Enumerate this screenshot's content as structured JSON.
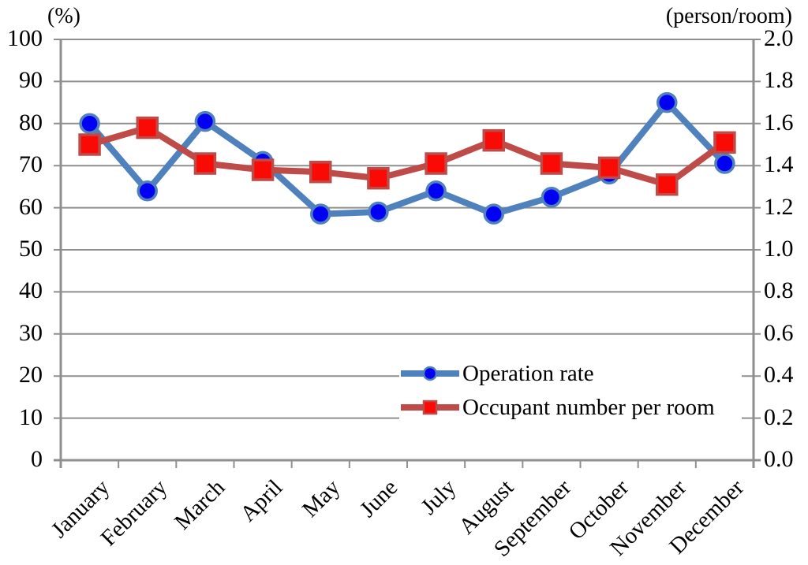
{
  "chart_data": {
    "type": "line",
    "categories": [
      "January",
      "February",
      "March",
      "April",
      "May",
      "June",
      "July",
      "August",
      "September",
      "October",
      "November",
      "December"
    ],
    "series": [
      {
        "name": "Operation rate",
        "axis": "left",
        "marker": "circle",
        "line_color": "#4F81BD",
        "marker_fill": "#0000F2",
        "marker_stroke": "#4F81BD",
        "values": [
          80,
          64,
          80.5,
          71,
          58.5,
          59,
          64,
          58.5,
          62.5,
          68,
          85,
          70.5
        ]
      },
      {
        "name": "Occupant number per room",
        "axis": "right",
        "marker": "square",
        "line_color": "#BE4B48",
        "marker_fill": "#FA0A05",
        "marker_stroke": "#BE4B48",
        "values": [
          1.5,
          1.58,
          1.41,
          1.38,
          1.37,
          1.34,
          1.41,
          1.52,
          1.41,
          1.39,
          1.31,
          1.51
        ]
      }
    ],
    "left_axis": {
      "title": "(%)",
      "min": 0,
      "max": 100,
      "step": 10,
      "tick_labels": [
        "0",
        "10",
        "20",
        "30",
        "40",
        "50",
        "60",
        "70",
        "80",
        "90",
        "100"
      ]
    },
    "right_axis": {
      "title": "(person/room)",
      "min": 0,
      "max": 2.0,
      "step": 0.2,
      "tick_labels": [
        "0.0",
        "0.2",
        "0.4",
        "0.6",
        "0.8",
        "1.0",
        "1.2",
        "1.4",
        "1.6",
        "1.8",
        "2.0"
      ]
    },
    "grid": true,
    "legend_position": "inside-bottom-right"
  },
  "colors": {
    "gridline": "#8F8F8F",
    "axis": "#8F8F8F",
    "background": "#FFFFFF",
    "text": "#000000"
  }
}
